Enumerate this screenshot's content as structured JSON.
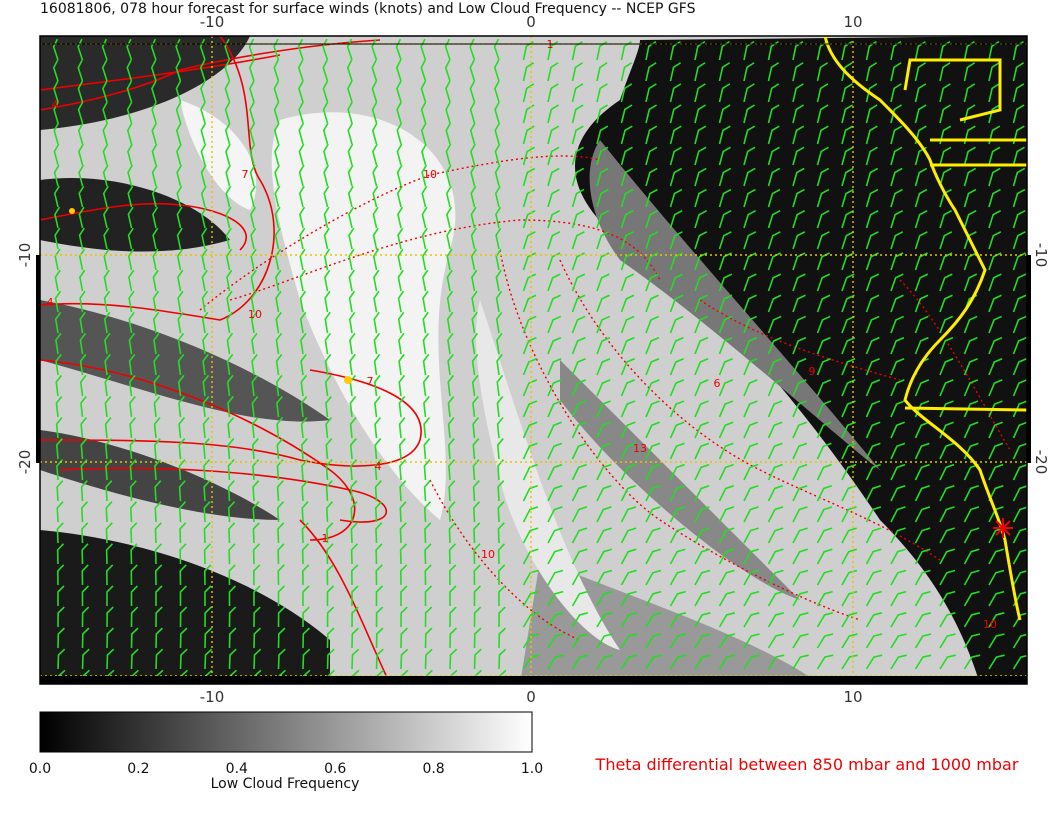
{
  "title": "16081806, 078 hour forecast for surface winds (knots) and Low Cloud Frequency -- NCEP GFS",
  "map": {
    "x_ticks": [
      "-10",
      "0",
      "10"
    ],
    "y_ticks": [
      "-10",
      "-20"
    ],
    "contour_labels": [
      "1",
      "4",
      "10",
      "7",
      "10",
      "4",
      "7",
      "4",
      "13",
      "10",
      "1",
      "6",
      "9",
      "10"
    ]
  },
  "colorbar": {
    "ticks": [
      "0.0",
      "0.2",
      "0.4",
      "0.6",
      "0.8",
      "1.0"
    ],
    "label": "Low Cloud Frequency"
  },
  "legend": {
    "text": "Theta differential between 850 mbar and 1000 mbar"
  }
}
